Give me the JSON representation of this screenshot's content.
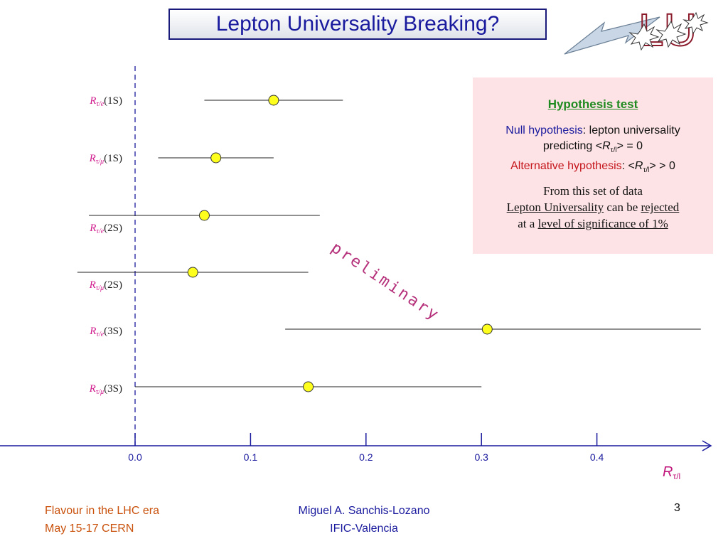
{
  "slide": {
    "title": "Lepton Universality Breaking?",
    "watermark": "preliminary",
    "logo_text": "LU",
    "page_number": "3"
  },
  "footer": {
    "left_line1": "Flavour in the LHC era",
    "left_line2": "May 15-17 CERN",
    "center_line1": "Miguel A. Sanchis-Lozano",
    "center_line2": "IFIC-Valencia"
  },
  "hypothesis": {
    "title": "Hypothesis test",
    "null_label": "Null hypothesis",
    "null_text1": ": lepton universality",
    "null_text2_a": "predicting  <",
    "null_text2_r": "R",
    "null_text2_sub": "τ/l",
    "null_text2_b": "> =  0",
    "alt_label": "Alternative hypothesis",
    "alt_text_a": ": <",
    "alt_text_r": "R",
    "alt_text_sub": "τ/l",
    "alt_text_b": "> > 0",
    "conclusion1": "From this set of data",
    "conclusion2_a": "Lepton Universality",
    "conclusion2_b": " can be ",
    "conclusion2_c": "rejected",
    "conclusion3_a": "at a ",
    "conclusion3_b": "level of significance of 1%"
  },
  "colors": {
    "title_text": "#1a1a9e",
    "axis": "#1a1a9e",
    "marker_fill": "#ffff1e",
    "label": "#d0188c",
    "box_bg": "#fde3e5"
  },
  "chart_data": {
    "type": "scatter",
    "subtype": "error-bar",
    "xlabel_main": "R",
    "xlabel_sub": "τ/l",
    "xlim": [
      -0.117,
      0.5
    ],
    "xticks": [
      0.0,
      0.1,
      0.2,
      0.3,
      0.4
    ],
    "xtick_labels": [
      "0.0",
      "0.1",
      "0.2",
      "0.3",
      "0.4"
    ],
    "reference_line_x": 0.0,
    "points": [
      {
        "label_main": "R",
        "label_sub": "τ/e",
        "label_tail": "(1S)",
        "value": 0.12,
        "low": 0.06,
        "high": 0.18
      },
      {
        "label_main": "R",
        "label_sub": "τ/μ",
        "label_tail": "(1S)",
        "value": 0.07,
        "low": 0.02,
        "high": 0.12
      },
      {
        "label_main": "R",
        "label_sub": "τ/e",
        "label_tail": "(2S)",
        "value": 0.06,
        "low": -0.04,
        "high": 0.16
      },
      {
        "label_main": "R",
        "label_sub": "τ/μ",
        "label_tail": "(2S)",
        "value": 0.05,
        "low": -0.05,
        "high": 0.15
      },
      {
        "label_main": "R",
        "label_sub": "τ/e",
        "label_tail": "(3S)",
        "value": 0.305,
        "low": 0.13,
        "high": 0.49
      },
      {
        "label_main": "R",
        "label_sub": "τ/μ",
        "label_tail": "(3S)",
        "value": 0.15,
        "low": 0.0,
        "high": 0.3
      }
    ]
  }
}
